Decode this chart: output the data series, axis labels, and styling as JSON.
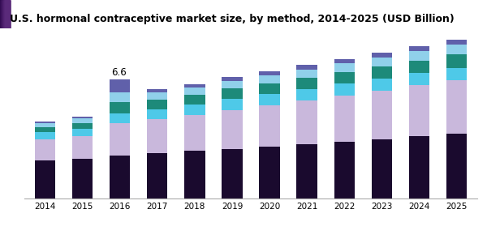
{
  "title": "U.S. hormonal contraceptive market size, by method, 2014-2025 (USD Billion)",
  "years": [
    2014,
    2015,
    2016,
    2017,
    2018,
    2019,
    2020,
    2021,
    2022,
    2023,
    2024,
    2025
  ],
  "annotation_year": 2016,
  "annotation_text": "6.6",
  "segments": {
    "Pill": [
      2.1,
      2.2,
      2.35,
      2.5,
      2.62,
      2.75,
      2.88,
      3.0,
      3.15,
      3.28,
      3.45,
      3.6
    ],
    "IUD": [
      1.15,
      1.25,
      1.8,
      1.9,
      2.0,
      2.15,
      2.28,
      2.42,
      2.55,
      2.68,
      2.82,
      2.95
    ],
    "Injectable": [
      0.4,
      0.42,
      0.55,
      0.55,
      0.57,
      0.6,
      0.62,
      0.64,
      0.65,
      0.66,
      0.67,
      0.68
    ],
    "Vaginal Ring": [
      0.28,
      0.3,
      0.65,
      0.52,
      0.55,
      0.58,
      0.6,
      0.62,
      0.65,
      0.67,
      0.7,
      0.73
    ],
    "Implant": [
      0.22,
      0.25,
      0.5,
      0.38,
      0.4,
      0.42,
      0.44,
      0.46,
      0.48,
      0.5,
      0.52,
      0.55
    ],
    "Patch": [
      0.1,
      0.11,
      0.75,
      0.18,
      0.2,
      0.22,
      0.23,
      0.24,
      0.25,
      0.26,
      0.27,
      0.28
    ]
  },
  "colors": {
    "Pill": "#1a0a2e",
    "IUD": "#c9b8dc",
    "Injectable": "#4ec9e8",
    "Vaginal Ring": "#1d8a7a",
    "Implant": "#90d0ea",
    "Patch": "#6060aa"
  },
  "header_colors": [
    "#3d1a6e",
    "#6a3a9a",
    "#9a5ab8"
  ],
  "background_color": "#ffffff",
  "bar_width": 0.55,
  "ylim": [
    0,
    9.0
  ]
}
